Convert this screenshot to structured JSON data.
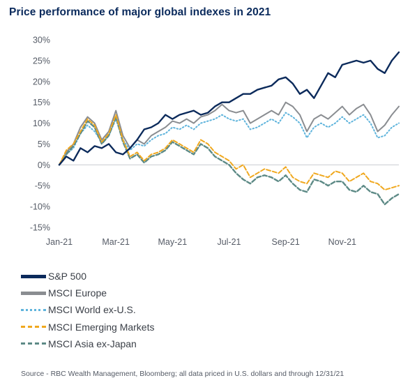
{
  "title": "Price performance of major global indexes in 2021",
  "source": "Source - RBC Wealth Management, Bloomberg; all data priced in U.S. dollars and through 12/31/21",
  "chart_data": {
    "type": "line",
    "title": "Price performance of major global indexes in 2021",
    "ylim": [
      -15,
      30
    ],
    "yticks": [
      -15,
      -10,
      -5,
      0,
      5,
      10,
      15,
      20,
      25,
      30
    ],
    "ytick_labels": [
      "-15%",
      "-10%",
      "-5%",
      "0%",
      "5%",
      "10%",
      "15%",
      "20%",
      "25%",
      "30%"
    ],
    "xlim": [
      0,
      12
    ],
    "xticks": [
      0,
      2,
      4,
      6,
      8,
      10
    ],
    "xtick_labels": [
      "Jan-21",
      "Mar-21",
      "May-21",
      "Jul-21",
      "Sep-21",
      "Nov-21"
    ],
    "grid": false,
    "legend_position": "bottom-left",
    "x": [
      0,
      0.25,
      0.5,
      0.75,
      1,
      1.25,
      1.5,
      1.75,
      2,
      2.25,
      2.5,
      2.75,
      3,
      3.25,
      3.5,
      3.75,
      4,
      4.25,
      4.5,
      4.75,
      5,
      5.25,
      5.5,
      5.75,
      6,
      6.25,
      6.5,
      6.75,
      7,
      7.25,
      7.5,
      7.75,
      8,
      8.25,
      8.5,
      8.75,
      9,
      9.25,
      9.5,
      9.75,
      10,
      10.25,
      10.5,
      10.75,
      11,
      11.25,
      11.5,
      11.75,
      12
    ],
    "series": [
      {
        "name": "S&P 500",
        "color": "#0b2a5b",
        "dash": "solid",
        "width": 2.4,
        "values": [
          0,
          2,
          1,
          4,
          3,
          4.5,
          4,
          5,
          3,
          2.5,
          4,
          6,
          8.5,
          9,
          10,
          12,
          11,
          12,
          12.5,
          13,
          12,
          12.5,
          14,
          15,
          15,
          16,
          17,
          17,
          18,
          18.5,
          19,
          20.5,
          21,
          19.5,
          17,
          18,
          16,
          19,
          22,
          21,
          24,
          24.5,
          25,
          24.5,
          25,
          23,
          22,
          25,
          27
        ]
      },
      {
        "name": "MSCI Europe",
        "color": "#8a8d91",
        "dash": "solid",
        "width": 2,
        "values": [
          0,
          3,
          5,
          9,
          11.5,
          10,
          6,
          8,
          13,
          7,
          4,
          6,
          5,
          7,
          8,
          9,
          10.5,
          10,
          11,
          10,
          11.5,
          12,
          13,
          14.5,
          13,
          12.5,
          13,
          10,
          11,
          12,
          13,
          12,
          15,
          14,
          12,
          8,
          11,
          12,
          11,
          12.5,
          14,
          12,
          13.5,
          14.5,
          12,
          8,
          9.5,
          12,
          14
        ]
      },
      {
        "name": "MSCI World ex-U.S.",
        "color": "#5fb4dc",
        "dash": "dot",
        "width": 2,
        "values": [
          0,
          2.5,
          4,
          7.5,
          9.5,
          8,
          5.5,
          7,
          11,
          6,
          3.5,
          5,
          4.5,
          6,
          7,
          7.5,
          9,
          8.5,
          9.5,
          8.5,
          10,
          10.5,
          11,
          12,
          11,
          10.5,
          11,
          8.5,
          9,
          10,
          11,
          10,
          12.5,
          11.5,
          10,
          6.5,
          9,
          10,
          9,
          10,
          11.5,
          10,
          11,
          12,
          10,
          6.5,
          7,
          9,
          10
        ]
      },
      {
        "name": "MSCI Emerging Markets",
        "color": "#f0a81e",
        "dash": "dash",
        "width": 2,
        "values": [
          0,
          3.5,
          5,
          8,
          11,
          9.5,
          5.5,
          7.5,
          12,
          6,
          2,
          3,
          1,
          2.5,
          3,
          4,
          6,
          5,
          4,
          3,
          6,
          5,
          3,
          2,
          1,
          -1,
          0,
          -3,
          -2,
          -1,
          -1.5,
          -2,
          -0.5,
          -3,
          -4,
          -4.5,
          -2,
          -2.5,
          -3,
          -1.5,
          -2,
          -4,
          -3,
          -2,
          -4,
          -4.5,
          -6,
          -5.5,
          -5
        ]
      },
      {
        "name": "MSCI Asia ex-Japan",
        "color": "#5d8a86",
        "dash": "dash",
        "width": 2.4,
        "values": [
          0,
          2.5,
          4.5,
          7.5,
          10.5,
          9,
          5,
          7,
          11.5,
          5.5,
          1.5,
          2.5,
          0.5,
          2,
          2.5,
          3.5,
          5.5,
          4.5,
          3.5,
          2.5,
          5,
          4,
          2,
          1,
          0,
          -2,
          -3.5,
          -4.5,
          -3,
          -2.5,
          -3,
          -4,
          -2.5,
          -4.5,
          -6,
          -6.5,
          -3.5,
          -4,
          -5,
          -4,
          -4,
          -6,
          -6.5,
          -5,
          -6.5,
          -7,
          -9.5,
          -8,
          -7
        ]
      }
    ]
  }
}
